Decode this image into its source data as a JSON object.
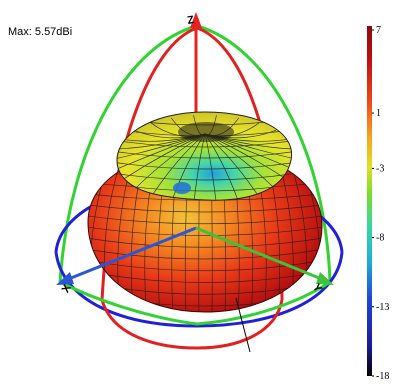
{
  "annotation": {
    "max_label": "Max: 5.57dBi"
  },
  "axes_letters": {
    "z": "Z",
    "x": "X",
    "y": "Y"
  },
  "colors": {
    "z_axis": "#e8221f",
    "x_axis": "#2a55d8",
    "y_axis": "#3cc33a",
    "ring_red": "#e32020",
    "ring_green": "#31d331",
    "ring_blue": "#2020d8",
    "mesh": "#1a1a1a"
  },
  "chart_data": {
    "type": "heatmap",
    "title": "",
    "colorbar": {
      "ticks": [
        {
          "label": "7",
          "value": 7
        },
        {
          "label": "1",
          "value": 1
        },
        {
          "label": "-3",
          "value": -3
        },
        {
          "label": "-8",
          "value": -8
        },
        {
          "label": "-13",
          "value": -13
        },
        {
          "label": "-18",
          "value": -18
        }
      ],
      "range": [
        -18,
        7
      ],
      "colormap": [
        "#000000",
        "#1a1a90",
        "#1f46d8",
        "#1fb0d8",
        "#2ed8a8",
        "#7ddc2a",
        "#e0e020",
        "#f6a81e",
        "#f04a1a",
        "#c01010",
        "#8a0a0a"
      ]
    },
    "max_gain_dbi": 5.57
  }
}
